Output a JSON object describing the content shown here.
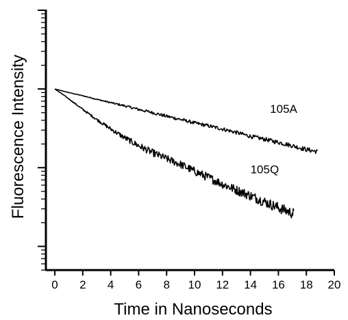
{
  "chart_data": {
    "type": "line",
    "title": "",
    "xlabel": "Time in Nanoseconds",
    "ylabel": "Fluorescence Intensity",
    "xlim": [
      0,
      20
    ],
    "x_ticks": [
      "0",
      "2",
      "4",
      "6",
      "8",
      "10",
      "12",
      "14",
      "16",
      "18",
      "20"
    ],
    "y_scale": "log",
    "y_tick_labels": "none",
    "ylim": [
      0.005,
      10
    ],
    "grid": false,
    "legend": "none",
    "line_color": "#000000",
    "series": [
      {
        "name": "105A",
        "label_at": [
          15.4,
          0.5
        ],
        "x": [
          0,
          1,
          2,
          3,
          4,
          5,
          6,
          7,
          8,
          9,
          10,
          11,
          12,
          13,
          14,
          15,
          16,
          17,
          18,
          18.8
        ],
        "y": [
          1.0,
          0.9,
          0.82,
          0.74,
          0.67,
          0.61,
          0.55,
          0.5,
          0.45,
          0.41,
          0.37,
          0.34,
          0.31,
          0.28,
          0.25,
          0.23,
          0.21,
          0.19,
          0.17,
          0.16
        ],
        "noise": 0.03
      },
      {
        "name": "105Q",
        "label_at": [
          14.0,
          0.085
        ],
        "x": [
          0,
          0.5,
          1,
          2,
          3,
          4,
          5,
          6,
          7,
          8,
          9,
          10,
          11,
          12,
          13,
          14,
          15,
          16,
          17.1
        ],
        "y": [
          1.0,
          0.87,
          0.75,
          0.55,
          0.41,
          0.31,
          0.24,
          0.19,
          0.155,
          0.13,
          0.11,
          0.09,
          0.075,
          0.062,
          0.052,
          0.044,
          0.037,
          0.031,
          0.026
        ],
        "noise": 0.07
      }
    ]
  }
}
